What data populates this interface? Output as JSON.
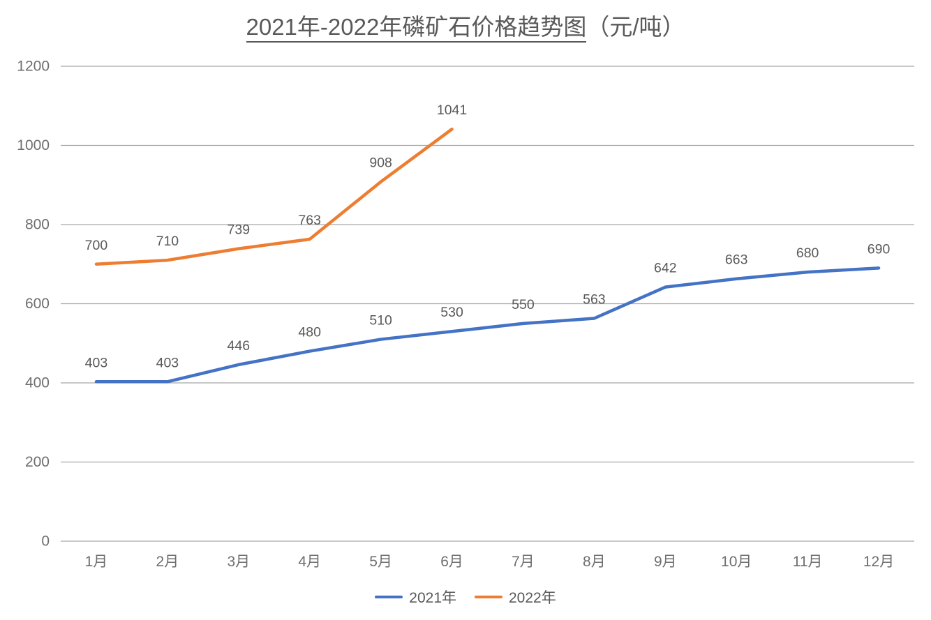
{
  "title": {
    "main": "2021年-2022年磷矿石价格趋势图",
    "unit": "（元/吨）"
  },
  "colors": {
    "background": "#FFFFFF",
    "title_text": "#595959",
    "tick_label": "#6E6E6E",
    "data_label": "#595959",
    "legend_text": "#595959",
    "gridline": "#A6A6A6",
    "series_2021": "#4472C4",
    "series_2022": "#ED7D31"
  },
  "chart_data": {
    "type": "line",
    "title": "2021年-2022年磷矿石价格趋势图（元/吨）",
    "categories": [
      "1月",
      "2月",
      "3月",
      "4月",
      "5月",
      "6月",
      "7月",
      "8月",
      "9月",
      "10月",
      "11月",
      "12月"
    ],
    "series": [
      {
        "name": "2021年",
        "color": "#4472C4",
        "values": [
          403,
          403,
          446,
          480,
          510,
          530,
          550,
          563,
          642,
          663,
          680,
          690
        ]
      },
      {
        "name": "2022年",
        "color": "#ED7D31",
        "values": [
          700,
          710,
          739,
          763,
          908,
          1041
        ]
      }
    ],
    "ylim": [
      0,
      1200
    ],
    "yticks": [
      0,
      200,
      400,
      600,
      800,
      1000,
      1200
    ],
    "grid": true,
    "data_labels": true,
    "legend_position": "bottom",
    "xlabel": "",
    "ylabel": ""
  }
}
